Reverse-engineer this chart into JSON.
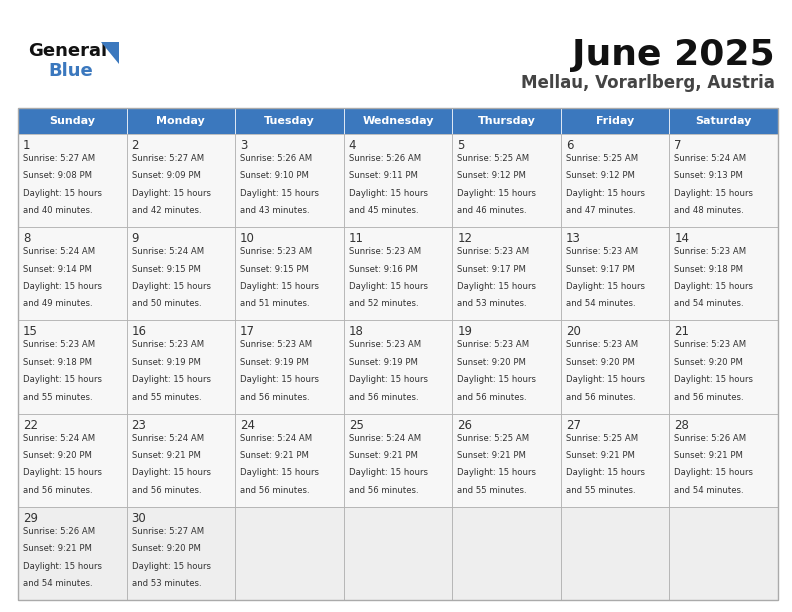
{
  "title": "June 2025",
  "subtitle": "Mellau, Vorarlberg, Austria",
  "days_of_week": [
    "Sunday",
    "Monday",
    "Tuesday",
    "Wednesday",
    "Thursday",
    "Friday",
    "Saturday"
  ],
  "header_bg": "#3b78be",
  "header_text": "#ffffff",
  "cell_bg": "#f7f7f7",
  "cell_bg_last": "#eeeeee",
  "cell_text": "#333333",
  "border_color": "#aaaaaa",
  "title_color": "#111111",
  "subtitle_color": "#444444",
  "logo_text_color": "#111111",
  "logo_blue_color": "#3b78be",
  "logo_triangle_color": "#3b78be",
  "calendar_data": [
    [
      {
        "day": 1,
        "sunrise": "5:27 AM",
        "sunset": "9:08 PM",
        "daylight": "15 hours and 40 minutes."
      },
      {
        "day": 2,
        "sunrise": "5:27 AM",
        "sunset": "9:09 PM",
        "daylight": "15 hours and 42 minutes."
      },
      {
        "day": 3,
        "sunrise": "5:26 AM",
        "sunset": "9:10 PM",
        "daylight": "15 hours and 43 minutes."
      },
      {
        "day": 4,
        "sunrise": "5:26 AM",
        "sunset": "9:11 PM",
        "daylight": "15 hours and 45 minutes."
      },
      {
        "day": 5,
        "sunrise": "5:25 AM",
        "sunset": "9:12 PM",
        "daylight": "15 hours and 46 minutes."
      },
      {
        "day": 6,
        "sunrise": "5:25 AM",
        "sunset": "9:12 PM",
        "daylight": "15 hours and 47 minutes."
      },
      {
        "day": 7,
        "sunrise": "5:24 AM",
        "sunset": "9:13 PM",
        "daylight": "15 hours and 48 minutes."
      }
    ],
    [
      {
        "day": 8,
        "sunrise": "5:24 AM",
        "sunset": "9:14 PM",
        "daylight": "15 hours and 49 minutes."
      },
      {
        "day": 9,
        "sunrise": "5:24 AM",
        "sunset": "9:15 PM",
        "daylight": "15 hours and 50 minutes."
      },
      {
        "day": 10,
        "sunrise": "5:23 AM",
        "sunset": "9:15 PM",
        "daylight": "15 hours and 51 minutes."
      },
      {
        "day": 11,
        "sunrise": "5:23 AM",
        "sunset": "9:16 PM",
        "daylight": "15 hours and 52 minutes."
      },
      {
        "day": 12,
        "sunrise": "5:23 AM",
        "sunset": "9:17 PM",
        "daylight": "15 hours and 53 minutes."
      },
      {
        "day": 13,
        "sunrise": "5:23 AM",
        "sunset": "9:17 PM",
        "daylight": "15 hours and 54 minutes."
      },
      {
        "day": 14,
        "sunrise": "5:23 AM",
        "sunset": "9:18 PM",
        "daylight": "15 hours and 54 minutes."
      }
    ],
    [
      {
        "day": 15,
        "sunrise": "5:23 AM",
        "sunset": "9:18 PM",
        "daylight": "15 hours and 55 minutes."
      },
      {
        "day": 16,
        "sunrise": "5:23 AM",
        "sunset": "9:19 PM",
        "daylight": "15 hours and 55 minutes."
      },
      {
        "day": 17,
        "sunrise": "5:23 AM",
        "sunset": "9:19 PM",
        "daylight": "15 hours and 56 minutes."
      },
      {
        "day": 18,
        "sunrise": "5:23 AM",
        "sunset": "9:19 PM",
        "daylight": "15 hours and 56 minutes."
      },
      {
        "day": 19,
        "sunrise": "5:23 AM",
        "sunset": "9:20 PM",
        "daylight": "15 hours and 56 minutes."
      },
      {
        "day": 20,
        "sunrise": "5:23 AM",
        "sunset": "9:20 PM",
        "daylight": "15 hours and 56 minutes."
      },
      {
        "day": 21,
        "sunrise": "5:23 AM",
        "sunset": "9:20 PM",
        "daylight": "15 hours and 56 minutes."
      }
    ],
    [
      {
        "day": 22,
        "sunrise": "5:24 AM",
        "sunset": "9:20 PM",
        "daylight": "15 hours and 56 minutes."
      },
      {
        "day": 23,
        "sunrise": "5:24 AM",
        "sunset": "9:21 PM",
        "daylight": "15 hours and 56 minutes."
      },
      {
        "day": 24,
        "sunrise": "5:24 AM",
        "sunset": "9:21 PM",
        "daylight": "15 hours and 56 minutes."
      },
      {
        "day": 25,
        "sunrise": "5:24 AM",
        "sunset": "9:21 PM",
        "daylight": "15 hours and 56 minutes."
      },
      {
        "day": 26,
        "sunrise": "5:25 AM",
        "sunset": "9:21 PM",
        "daylight": "15 hours and 55 minutes."
      },
      {
        "day": 27,
        "sunrise": "5:25 AM",
        "sunset": "9:21 PM",
        "daylight": "15 hours and 55 minutes."
      },
      {
        "day": 28,
        "sunrise": "5:26 AM",
        "sunset": "9:21 PM",
        "daylight": "15 hours and 54 minutes."
      }
    ],
    [
      {
        "day": 29,
        "sunrise": "5:26 AM",
        "sunset": "9:21 PM",
        "daylight": "15 hours and 54 minutes."
      },
      {
        "day": 30,
        "sunrise": "5:27 AM",
        "sunset": "9:20 PM",
        "daylight": "15 hours and 53 minutes."
      },
      null,
      null,
      null,
      null,
      null
    ]
  ]
}
